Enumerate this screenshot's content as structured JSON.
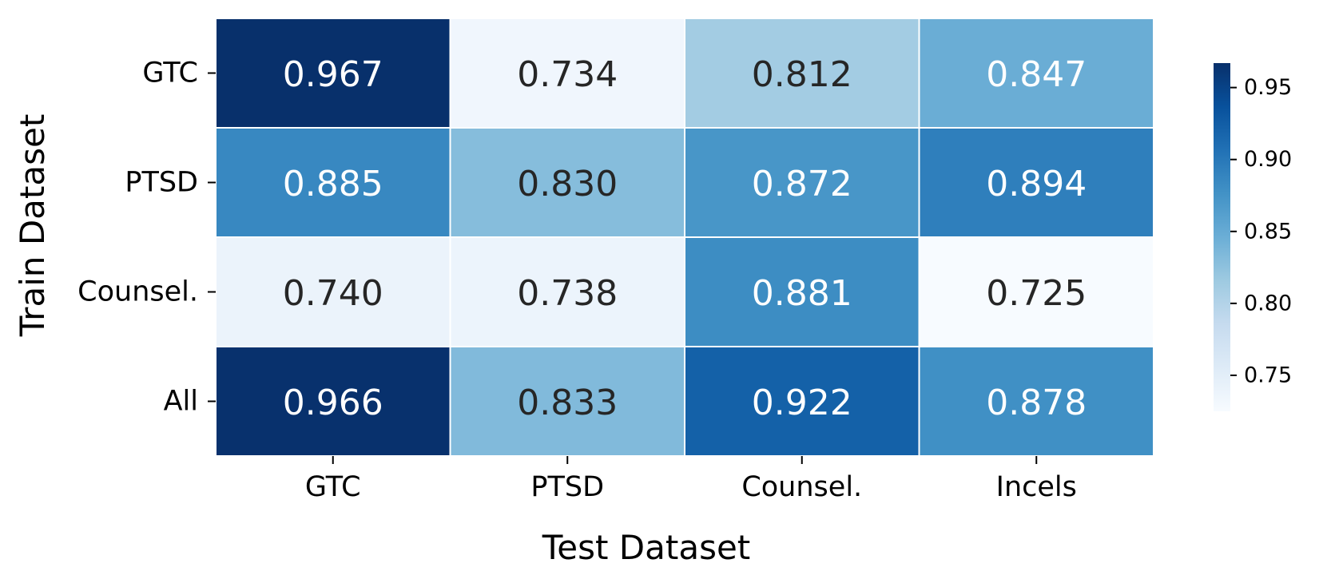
{
  "chart_data": {
    "type": "heatmap",
    "title": "",
    "xlabel": "Test Dataset",
    "ylabel": "Train Dataset",
    "x_categories": [
      "GTC",
      "PTSD",
      "Counsel.",
      "Incels"
    ],
    "y_categories": [
      "GTC",
      "PTSD",
      "Counsel.",
      "All"
    ],
    "values": [
      [
        0.967,
        0.734,
        0.812,
        0.847
      ],
      [
        0.885,
        0.83,
        0.872,
        0.894
      ],
      [
        0.74,
        0.738,
        0.881,
        0.725
      ],
      [
        0.966,
        0.833,
        0.922,
        0.878
      ]
    ],
    "value_labels": [
      [
        "0.967",
        "0.734",
        "0.812",
        "0.847"
      ],
      [
        "0.885",
        "0.830",
        "0.872",
        "0.894"
      ],
      [
        "0.740",
        "0.738",
        "0.881",
        "0.725"
      ],
      [
        "0.966",
        "0.833",
        "0.922",
        "0.878"
      ]
    ],
    "colormap": "Blues",
    "colorbar": {
      "range": [
        0.725,
        0.967
      ],
      "ticks": [
        0.75,
        0.8,
        0.85,
        0.9,
        0.95
      ],
      "tick_labels": [
        "0.75",
        "0.80",
        "0.85",
        "0.90",
        "0.95"
      ]
    },
    "grid": false,
    "legend": "colorbar-right"
  }
}
